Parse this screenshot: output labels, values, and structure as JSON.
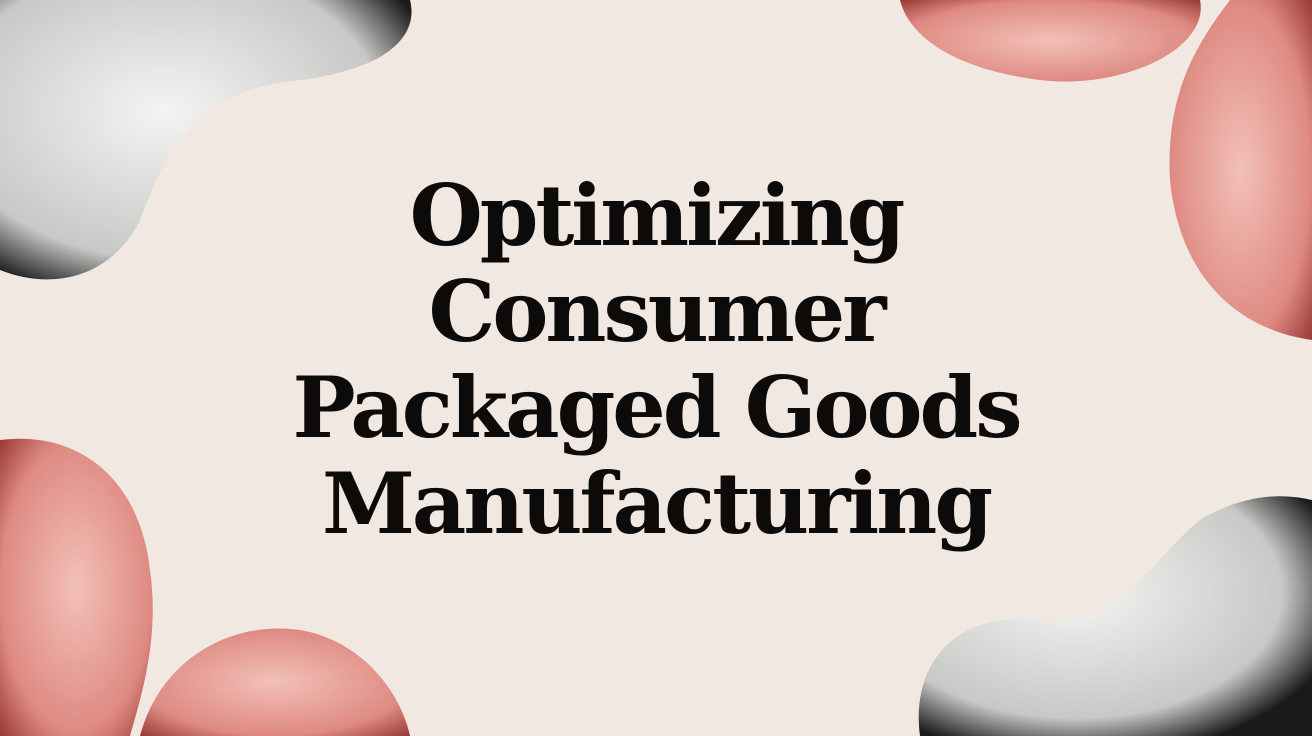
{
  "title_lines": [
    "Optimizing",
    "Consumer",
    "Packaged Goods",
    "Manufacturing"
  ],
  "colors": {
    "background": "#f1e8e1",
    "text": "#0d0b0a",
    "accent_pink": "#d98c86",
    "accent_gray": "#cfcfcf"
  }
}
